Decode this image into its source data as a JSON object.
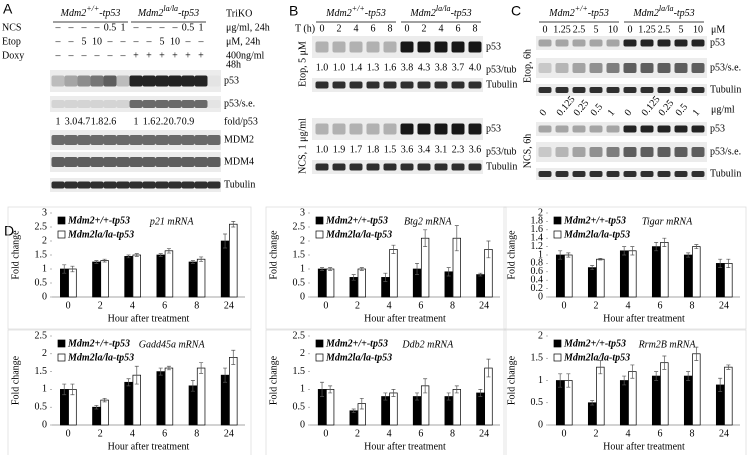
{
  "panels": {
    "A": {
      "label": "A",
      "headers": [
        {
          "base": "Mdm2",
          "sup": "+/+",
          "rest": "-tp53"
        },
        {
          "base": "Mdm2",
          "sup": "la/la",
          "rest": "-tp53"
        }
      ],
      "triko": "TriKO",
      "treatments": [
        {
          "name": "NCS",
          "lanes": [
            "–",
            "–",
            "–",
            "–",
            "0.5",
            "1",
            "–",
            "–",
            "–",
            "–",
            "0.5",
            "1"
          ],
          "unit": "μg/ml, 24h"
        },
        {
          "name": "Etop",
          "lanes": [
            "–",
            "–",
            "5",
            "10",
            "–",
            "–",
            "–",
            "–",
            "5",
            "10",
            "–",
            "–"
          ],
          "unit": "μM, 24h"
        },
        {
          "name": "Doxy",
          "lanes": [
            "–",
            "–",
            "–",
            "–",
            "–",
            "–",
            "+",
            "+",
            "+",
            "+",
            "+",
            "+"
          ],
          "unit": [
            "400ng/ml",
            "48h"
          ]
        }
      ],
      "blots": [
        "p53",
        "p53/s.e.",
        "MDM2",
        "MDM4",
        "Tubulin"
      ],
      "folds": [
        "1",
        "3.0",
        "4.7",
        "1.8",
        "2.6",
        "1",
        "1.6",
        "2.2",
        "0.7",
        "0.9"
      ],
      "fold_label": "fold/p53"
    },
    "B": {
      "label": "B",
      "headers": [
        {
          "base": "Mdm2",
          "sup": "+/+",
          "rest": "-tp53"
        },
        {
          "base": "Mdm2",
          "sup": "la/la",
          "rest": "-tp53"
        }
      ],
      "time_label": "T (h)",
      "lanes": [
        "0",
        "2",
        "4",
        "6",
        "8",
        "0",
        "2",
        "4",
        "6",
        "8"
      ],
      "blocks": [
        {
          "condition": "Etop, 5 μM",
          "blots": [
            "p53",
            "Tubulin"
          ],
          "ratio_label": "p53/tub",
          "ratios": [
            "1.0",
            "1.0",
            "1.4",
            "1.3",
            "1.6",
            "3.8",
            "4.3",
            "3.8",
            "3.7",
            "4.0"
          ]
        },
        {
          "condition": "NCS, 1 μg/ml",
          "blots": [
            "p53",
            "Tubulin"
          ],
          "ratio_label": "p53/tub",
          "ratios": [
            "1.0",
            "1.9",
            "1.7",
            "1.8",
            "1.5",
            "3.6",
            "3.4",
            "3.1",
            "2.3",
            "3.6"
          ]
        }
      ]
    },
    "C": {
      "label": "C",
      "headers": [
        {
          "base": "Mdm2",
          "sup": "+/+",
          "rest": "-tp53"
        },
        {
          "base": "Mdm2",
          "sup": "la/la",
          "rest": "-tp53"
        }
      ],
      "blocks": [
        {
          "condition": "Etop, 6h",
          "doses": [
            "0",
            "1.25",
            "2.5",
            "5",
            "10",
            "0",
            "1.25",
            "2.5",
            "5",
            "10"
          ],
          "unit": "μM",
          "blots": [
            "p53",
            "p53/s.e.",
            "Tubulin"
          ]
        },
        {
          "condition": "NCS, 6h",
          "doses": [
            "0",
            "0.125",
            "0.25",
            "0.5",
            "1",
            "0",
            "0.125",
            "0.25",
            "0.5",
            "1"
          ],
          "unit": "μg/ml",
          "blots": [
            "p53",
            "p53/s.e.",
            "Tubulin"
          ]
        }
      ]
    },
    "D": {
      "label": "D"
    }
  },
  "chart_data": [
    {
      "type": "bar",
      "title": "p21 mRNA",
      "x_label": "Hour after treatment",
      "y_label": "Fold change",
      "categories": [
        "0",
        "2",
        "4",
        "6",
        "8",
        "24"
      ],
      "ylim": [
        0,
        3
      ],
      "yticks": [
        0,
        0.5,
        1,
        1.5,
        2,
        2.5,
        3
      ],
      "series": [
        {
          "name": "Mdm2+/+-tp53",
          "color": "#000000",
          "values": [
            1.0,
            1.25,
            1.45,
            1.5,
            1.25,
            2.0
          ],
          "errors": [
            0.15,
            0.05,
            0.05,
            0.05,
            0.05,
            0.25
          ]
        },
        {
          "name": "Mdm2la/la-tp53",
          "color": "#ffffff",
          "values": [
            1.0,
            1.3,
            1.5,
            1.65,
            1.35,
            2.6
          ],
          "errors": [
            0.1,
            0.05,
            0.05,
            0.08,
            0.08,
            0.1
          ]
        }
      ]
    },
    {
      "type": "bar",
      "title": "Btg2 mRNA",
      "x_label": "Hour after treatment",
      "y_label": "Fold change",
      "categories": [
        "0",
        "2",
        "4",
        "6",
        "8",
        "24"
      ],
      "ylim": [
        0,
        3
      ],
      "yticks": [
        0,
        0.5,
        1,
        1.5,
        2,
        2.5,
        3
      ],
      "series": [
        {
          "name": "Mdm2+/+-tp53",
          "color": "#000000",
          "values": [
            1.0,
            0.7,
            0.7,
            1.0,
            0.9,
            0.8
          ],
          "errors": [
            0.05,
            0.1,
            0.15,
            0.2,
            0.15,
            0.05
          ]
        },
        {
          "name": "Mdm2la/la-tp53",
          "color": "#ffffff",
          "values": [
            1.0,
            1.0,
            1.7,
            2.1,
            2.1,
            1.7
          ],
          "errors": [
            0.05,
            0.05,
            0.15,
            0.3,
            0.45,
            0.3
          ]
        }
      ]
    },
    {
      "type": "bar",
      "title": "Tigar mRNA",
      "x_label": "Hour after treatment",
      "y_label": "Fold change",
      "categories": [
        "0",
        "2",
        "4",
        "6",
        "8",
        "24"
      ],
      "ylim": [
        0,
        2
      ],
      "yticks": [
        0,
        0.2,
        0.4,
        0.6,
        0.8,
        1,
        1.2,
        1.4,
        1.6,
        1.8,
        2
      ],
      "series": [
        {
          "name": "Mdm2+/+-tp53",
          "color": "#000000",
          "values": [
            1.0,
            0.7,
            1.1,
            1.2,
            1.0,
            0.8
          ],
          "errors": [
            0.1,
            0.05,
            0.1,
            0.1,
            0.05,
            0.1
          ]
        },
        {
          "name": "Mdm2la/la-tp53",
          "color": "#ffffff",
          "values": [
            1.0,
            0.9,
            1.1,
            1.3,
            1.2,
            0.8
          ],
          "errors": [
            0.05,
            0.02,
            0.1,
            0.1,
            0.05,
            0.1
          ]
        }
      ]
    },
    {
      "type": "bar",
      "title": "Gadd45a mRNA",
      "x_label": "Hour after treatment",
      "y_label": "Fold change",
      "categories": [
        "0",
        "2",
        "4",
        "6",
        "8",
        "24"
      ],
      "ylim": [
        0,
        2.5
      ],
      "yticks": [
        0,
        0.5,
        1,
        1.5,
        2,
        2.5
      ],
      "series": [
        {
          "name": "Mdm2+/+-tp53",
          "color": "#000000",
          "values": [
            1.0,
            0.5,
            1.2,
            1.5,
            1.1,
            1.4
          ],
          "errors": [
            0.15,
            0.05,
            0.1,
            0.1,
            0.15,
            0.2
          ]
        },
        {
          "name": "Mdm2la/la-tp53",
          "color": "#ffffff",
          "values": [
            1.0,
            0.7,
            1.4,
            1.6,
            1.6,
            1.9
          ],
          "errors": [
            0.15,
            0.05,
            0.25,
            0.05,
            0.15,
            0.2
          ]
        }
      ]
    },
    {
      "type": "bar",
      "title": "Ddb2 mRNA",
      "x_label": "Hour after treatment",
      "y_label": "Fold change",
      "categories": [
        "0",
        "2",
        "4",
        "6",
        "8",
        "24"
      ],
      "ylim": [
        0,
        2.5
      ],
      "yticks": [
        0,
        0.5,
        1,
        1.5,
        2,
        2.5
      ],
      "series": [
        {
          "name": "Mdm2+/+-tp53",
          "color": "#000000",
          "values": [
            1.0,
            0.4,
            0.8,
            0.8,
            0.8,
            0.9
          ],
          "errors": [
            0.2,
            0.05,
            0.1,
            0.1,
            0.1,
            0.1
          ]
        },
        {
          "name": "Mdm2la/la-tp53",
          "color": "#ffffff",
          "values": [
            1.0,
            0.6,
            0.9,
            1.1,
            1.0,
            1.6
          ],
          "errors": [
            0.1,
            0.15,
            0.1,
            0.2,
            0.1,
            0.25
          ]
        }
      ]
    },
    {
      "type": "bar",
      "title": "Rrm2B mRNA",
      "x_label": "Hour after treatment",
      "y_label": "Fold change",
      "categories": [
        "0",
        "2",
        "4",
        "6",
        "8",
        "24"
      ],
      "ylim": [
        0,
        2
      ],
      "yticks": [
        0,
        0.5,
        1,
        1.5,
        2
      ],
      "series": [
        {
          "name": "Mdm2+/+-tp53",
          "color": "#000000",
          "values": [
            1.0,
            0.5,
            1.0,
            1.1,
            1.1,
            0.9
          ],
          "errors": [
            0.15,
            0.05,
            0.1,
            0.1,
            0.1,
            0.15
          ]
        },
        {
          "name": "Mdm2la/la-tp53",
          "color": "#ffffff",
          "values": [
            1.0,
            1.3,
            1.2,
            1.4,
            1.6,
            1.3
          ],
          "errors": [
            0.15,
            0.15,
            0.15,
            0.15,
            0.15,
            0.05
          ]
        }
      ]
    }
  ]
}
